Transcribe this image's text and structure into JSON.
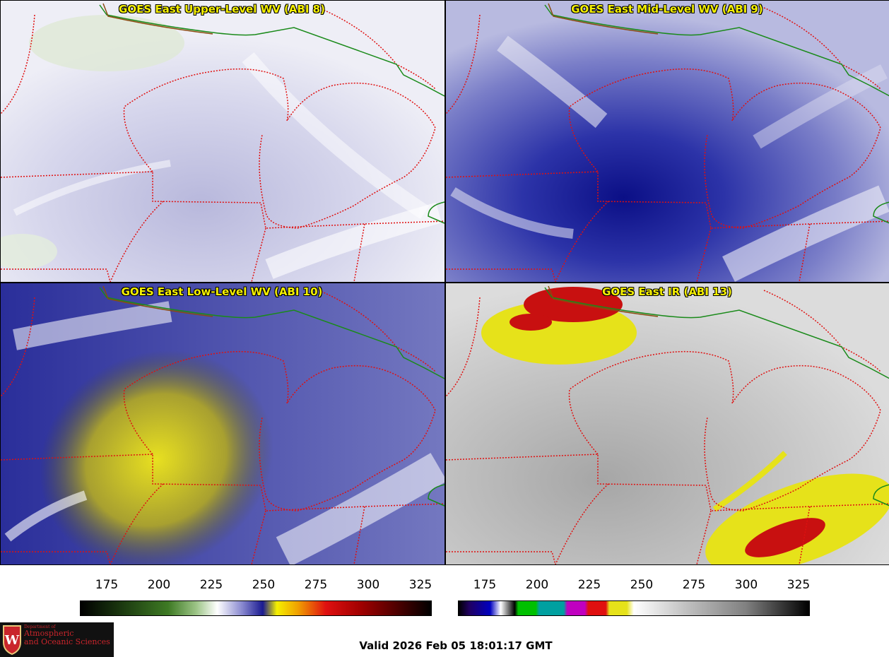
{
  "panels": [
    {
      "title": "GOES East Upper-Level WV (ABI 8)"
    },
    {
      "title": "GOES East Mid-Level WV (ABI 9)"
    },
    {
      "title": "GOES East Low-Level WV (ABI 10)"
    },
    {
      "title": "GOES East IR (ABI 13)"
    }
  ],
  "colorbars": {
    "wv": {
      "ticks": [
        "175",
        "200",
        "225",
        "250",
        "275",
        "300",
        "325"
      ]
    },
    "ir": {
      "ticks": [
        "175",
        "200",
        "225",
        "250",
        "275",
        "300",
        "325"
      ]
    }
  },
  "logo": {
    "line1": "Department of",
    "line2": "Atmospheric",
    "line3": "and Oceanic Sciences"
  },
  "valid_time": "Valid 2026 Feb 05 18:01:17 GMT",
  "colors": {
    "border_state": "#e01010",
    "border_country": "#1a8a1a",
    "title_text": "#f5f000"
  }
}
